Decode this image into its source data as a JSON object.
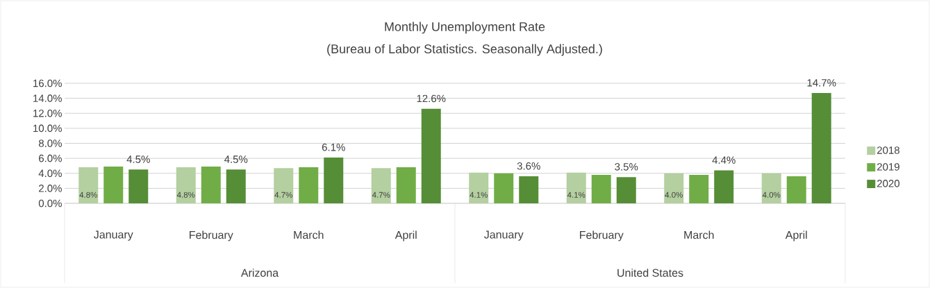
{
  "chart_data": {
    "type": "bar",
    "title": "Monthly Unemployment Rate",
    "subtitle": "(Bureau of Labor Statistics. Seasonally Adjusted.)",
    "categories": [
      "January",
      "February",
      "March",
      "April",
      "January",
      "February",
      "March",
      "April"
    ],
    "series": [
      {
        "name": "2018",
        "color": "#b4cfa0",
        "values": [
          4.8,
          4.8,
          4.7,
          4.7,
          4.1,
          4.1,
          4.0,
          4.0
        ],
        "value_labels": [
          "4.8%",
          "4.8%",
          "4.7%",
          "4.7%",
          "4.1%",
          "4.1%",
          "4.0%",
          "4.0%"
        ]
      },
      {
        "name": "2019",
        "color": "#70ad47",
        "values": [
          4.9,
          4.9,
          4.8,
          4.8,
          4.0,
          3.8,
          3.8,
          3.6
        ]
      },
      {
        "name": "2020",
        "color": "#568d37",
        "values": [
          4.5,
          4.5,
          6.1,
          12.6,
          3.6,
          3.5,
          4.4,
          14.7
        ],
        "value_labels": [
          "4.5%",
          "4.5%",
          "6.1%",
          "12.6%",
          "3.6%",
          "3.5%",
          "4.4%",
          "14.7%"
        ]
      }
    ],
    "ylim": [
      0,
      16
    ],
    "yticks": [
      {
        "value": 0,
        "label": "0.0%"
      },
      {
        "value": 2,
        "label": "2.0%"
      },
      {
        "value": 4,
        "label": "4.0%"
      },
      {
        "value": 6,
        "label": "6.0%"
      },
      {
        "value": 8,
        "label": "8.0%"
      },
      {
        "value": 10,
        "label": "10.0%"
      },
      {
        "value": 12,
        "label": "12.0%"
      },
      {
        "value": 14,
        "label": "14.0%"
      },
      {
        "value": 16,
        "label": "16.0%"
      }
    ],
    "annotations": [
      "Arizona",
      "United States"
    ],
    "grid": "y",
    "legend": "right"
  }
}
